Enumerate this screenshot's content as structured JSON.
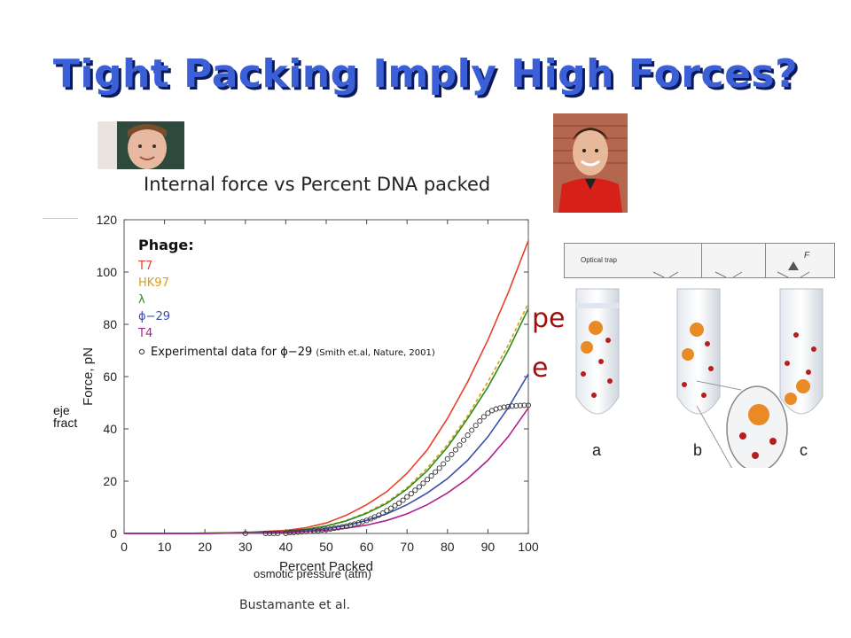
{
  "slide": {
    "title": "Tight Packing Imply High Forces?",
    "credit": "Bustamante et al.",
    "partial_text": {
      "ejection_label": "eje\nfract",
      "red_fragment_1": "pe",
      "red_fragment_2": "e",
      "osmotic_label": "osmotic pressure (atm)"
    },
    "optical_trap_label": "Optical trap",
    "force_symbol": "F",
    "tube_labels": [
      "a",
      "b",
      "c"
    ]
  },
  "chart_data": {
    "type": "line",
    "title": "Internal force vs Percent DNA packed",
    "xlabel": "Percent Packed",
    "ylabel": "Force, pN",
    "xlim": [
      0,
      100
    ],
    "ylim": [
      0,
      120
    ],
    "xticks": [
      0,
      10,
      20,
      30,
      40,
      50,
      60,
      70,
      80,
      90,
      100
    ],
    "yticks": [
      0,
      20,
      40,
      60,
      80,
      100,
      120
    ],
    "legend_title": "Phage:",
    "legend_position": "top-left",
    "series": [
      {
        "name": "T7",
        "color": "#e8402a",
        "x": [
          0,
          10,
          20,
          30,
          40,
          45,
          50,
          55,
          60,
          65,
          70,
          75,
          80,
          85,
          90,
          95,
          100
        ],
        "y": [
          0,
          0,
          0.1,
          0.4,
          1.2,
          2.2,
          4,
          7,
          11,
          16,
          23,
          32,
          44,
          58,
          74,
          92,
          112
        ]
      },
      {
        "name": "HK97",
        "color": "#d4a017",
        "dash": true,
        "x": [
          0,
          10,
          20,
          30,
          40,
          45,
          50,
          55,
          60,
          65,
          70,
          75,
          80,
          85,
          90,
          95,
          100
        ],
        "y": [
          0,
          0,
          0.1,
          0.3,
          0.9,
          1.6,
          2.9,
          5,
          8,
          12,
          17.5,
          25,
          34,
          45,
          58,
          72,
          88
        ]
      },
      {
        "name": "λ",
        "color": "#2e8b1e",
        "x": [
          0,
          10,
          20,
          30,
          40,
          45,
          50,
          55,
          60,
          65,
          70,
          75,
          80,
          85,
          90,
          95,
          100
        ],
        "y": [
          0,
          0,
          0.1,
          0.3,
          0.9,
          1.6,
          2.8,
          4.8,
          7.7,
          11.5,
          17,
          24,
          33,
          44,
          56,
          70,
          86
        ]
      },
      {
        "name": "ϕ−29",
        "color": "#3a4fa8",
        "x": [
          0,
          10,
          20,
          30,
          40,
          45,
          50,
          55,
          60,
          65,
          70,
          75,
          80,
          85,
          90,
          95,
          100
        ],
        "y": [
          0,
          0,
          0.05,
          0.2,
          0.6,
          1,
          1.8,
          3,
          5,
          7.5,
          11,
          15.5,
          21,
          28,
          37,
          48,
          61
        ]
      },
      {
        "name": "T4",
        "color": "#b0208a",
        "x": [
          0,
          10,
          20,
          30,
          40,
          45,
          50,
          55,
          60,
          65,
          70,
          75,
          80,
          85,
          90,
          95,
          100
        ],
        "y": [
          0,
          0,
          0.05,
          0.15,
          0.4,
          0.7,
          1.2,
          2,
          3.2,
          5,
          7.5,
          11,
          15.5,
          21,
          28,
          37,
          48
        ]
      }
    ],
    "experimental": {
      "name": "Experimental data for ϕ−29",
      "citation": "(Smith et.al, Nature, 2001)",
      "x": [
        30,
        35,
        36,
        37,
        38,
        40,
        41,
        42,
        43,
        44,
        45,
        46,
        47,
        48,
        49,
        50,
        51,
        52,
        53,
        54,
        55,
        56,
        57,
        58,
        59,
        60,
        61,
        62,
        63,
        64,
        65,
        66,
        67,
        68,
        69,
        70,
        71,
        72,
        73,
        74,
        75,
        76,
        77,
        78,
        79,
        80,
        81,
        82,
        83,
        84,
        85,
        86,
        87,
        88,
        89,
        90,
        91,
        92,
        93,
        94,
        95,
        96,
        97,
        98,
        99,
        100
      ],
      "y": [
        0,
        0,
        0,
        0,
        0,
        0,
        0.3,
        0.4,
        0.5,
        0.6,
        0.7,
        0.8,
        1,
        1.1,
        1.3,
        1.5,
        1.7,
        2,
        2.2,
        2.5,
        2.8,
        3.2,
        3.6,
        4,
        4.5,
        5,
        5.6,
        6.3,
        7,
        7.8,
        8.7,
        9.6,
        10.6,
        11.6,
        12.7,
        14,
        15.2,
        16.5,
        17.8,
        19.2,
        20.6,
        22,
        23.5,
        25,
        26.6,
        28.5,
        30.2,
        32,
        33.8,
        35.7,
        37.6,
        39.5,
        41.3,
        43,
        44.6,
        46,
        47,
        47.6,
        48,
        48.3,
        48.5,
        48.7,
        48.8,
        48.9,
        49,
        49
      ]
    }
  }
}
